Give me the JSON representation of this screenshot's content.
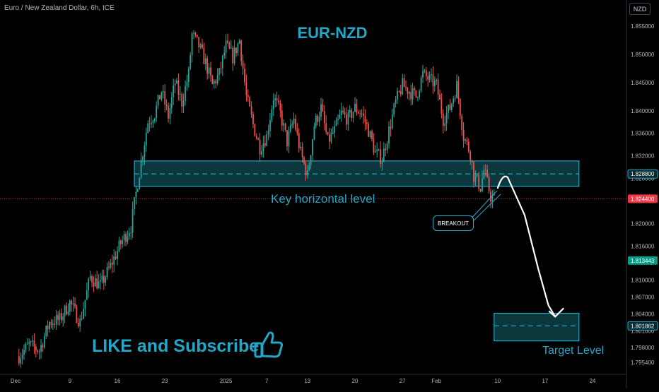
{
  "header": {
    "symbol_line": "Euro / New Zealand Dollar, 6h, ICE",
    "currency_button": "NZD"
  },
  "annotations": {
    "title": "EUR-NZD",
    "key_level_label": "Key horizontal level",
    "breakout_label": "BREAKOUT",
    "target_label": "Target Level",
    "cta": "LIKE and Subscribe"
  },
  "colors": {
    "bull": "#26a69a",
    "bear": "#ef5350",
    "accent": "#22a7c8",
    "zone_fill": "#0f4a52",
    "current_price": "#f23645",
    "green_tag": "#089981"
  },
  "icons": [
    "thumbs-up-icon",
    "arrow-down-icon"
  ],
  "chart_data": {
    "type": "candlestick",
    "title": "EUR-NZD",
    "instrument": "Euro / New Zealand Dollar",
    "timeframe": "6h",
    "source": "ICE",
    "ylim": [
      1.7935,
      1.857
    ],
    "y_ticks": [
      "1.855000",
      "1.850000",
      "1.845000",
      "1.840000",
      "1.836000",
      "1.832000",
      "1.828000",
      "1.824000",
      "1.820000",
      "1.816000",
      "1.810000",
      "1.807000",
      "1.804000",
      "1.801000",
      "1.798000",
      "1.795400"
    ],
    "x_ticks": [
      {
        "label": "Dec",
        "day": 0
      },
      {
        "label": "9",
        "day": 8
      },
      {
        "label": "16",
        "day": 15
      },
      {
        "label": "23",
        "day": 22
      },
      {
        "label": "2025",
        "day": 31
      },
      {
        "label": "7",
        "day": 37
      },
      {
        "label": "13",
        "day": 43
      },
      {
        "label": "20",
        "day": 50
      },
      {
        "label": "27",
        "day": 57
      },
      {
        "label": "Feb",
        "day": 62
      },
      {
        "label": "10",
        "day": 71
      },
      {
        "label": "17",
        "day": 78
      },
      {
        "label": "24",
        "day": 85
      }
    ],
    "price_tags": [
      {
        "label": "1.828800",
        "value": 1.8288,
        "style": "zone"
      },
      {
        "label": "1.824400",
        "value": 1.8244,
        "style": "current"
      },
      {
        "label": "1.813443",
        "value": 1.813443,
        "style": "green"
      },
      {
        "label": "1.801862",
        "value": 1.801862,
        "style": "zone"
      }
    ],
    "zones": [
      {
        "name": "Key horizontal level",
        "from": 1.8266,
        "to": 1.8311,
        "mid": 1.8288,
        "day_start": 17.5,
        "day_end": 83
      },
      {
        "name": "Target Level",
        "from": 1.7992,
        "to": 1.8041,
        "mid": 1.801862,
        "day_start": 70.5,
        "day_end": 83
      }
    ],
    "current_price": 1.8244,
    "path": [
      [
        0.5,
        1.7965
      ],
      [
        2,
        1.7985
      ],
      [
        3.5,
        1.7975
      ],
      [
        5,
        1.8025
      ],
      [
        6.5,
        1.803
      ],
      [
        8,
        1.806
      ],
      [
        9.5,
        1.8025
      ],
      [
        11,
        1.8105
      ],
      [
        12.5,
        1.809
      ],
      [
        14,
        1.8125
      ],
      [
        15.5,
        1.8165
      ],
      [
        17,
        1.8195
      ],
      [
        17.5,
        1.8235
      ],
      [
        18.5,
        1.831
      ],
      [
        19.5,
        1.838
      ],
      [
        20.5,
        1.8395
      ],
      [
        21.5,
        1.8435
      ],
      [
        22.5,
        1.839
      ],
      [
        23.5,
        1.845
      ],
      [
        24.5,
        1.8415
      ],
      [
        25.5,
        1.8465
      ],
      [
        26,
        1.8535
      ],
      [
        27,
        1.8515
      ],
      [
        28,
        1.8485
      ],
      [
        29,
        1.8445
      ],
      [
        30,
        1.8465
      ],
      [
        31,
        1.8515
      ],
      [
        32,
        1.8495
      ],
      [
        33,
        1.8525
      ],
      [
        34,
        1.8425
      ],
      [
        35,
        1.8375
      ],
      [
        36,
        1.8335
      ],
      [
        37,
        1.8355
      ],
      [
        38,
        1.8425
      ],
      [
        39,
        1.8395
      ],
      [
        40,
        1.8345
      ],
      [
        41,
        1.8385
      ],
      [
        42,
        1.8325
      ],
      [
        43,
        1.8285
      ],
      [
        44,
        1.8375
      ],
      [
        45,
        1.8405
      ],
      [
        46,
        1.8345
      ],
      [
        47,
        1.8365
      ],
      [
        48,
        1.8395
      ],
      [
        49,
        1.8385
      ],
      [
        50,
        1.8405
      ],
      [
        51,
        1.8395
      ],
      [
        52,
        1.8365
      ],
      [
        53,
        1.8325
      ],
      [
        54,
        1.8315
      ],
      [
        55,
        1.8365
      ],
      [
        56,
        1.8415
      ],
      [
        57,
        1.8445
      ],
      [
        58,
        1.8435
      ],
      [
        59,
        1.8425
      ],
      [
        60,
        1.8465
      ],
      [
        61,
        1.8455
      ],
      [
        62,
        1.8445
      ],
      [
        63,
        1.8385
      ],
      [
        64,
        1.8405
      ],
      [
        65,
        1.8445
      ],
      [
        66,
        1.8355
      ],
      [
        67,
        1.8325
      ],
      [
        67.5,
        1.8285
      ],
      [
        68.5,
        1.8265
      ],
      [
        69,
        1.8295
      ],
      [
        70,
        1.8248
      ],
      [
        70.5,
        1.8244
      ]
    ],
    "projection": [
      [
        71,
        1.8262
      ],
      [
        72.5,
        1.8282
      ],
      [
        75,
        1.8215
      ],
      [
        77,
        1.812
      ],
      [
        78.5,
        1.8055
      ],
      [
        79.5,
        1.8035
      ]
    ]
  }
}
